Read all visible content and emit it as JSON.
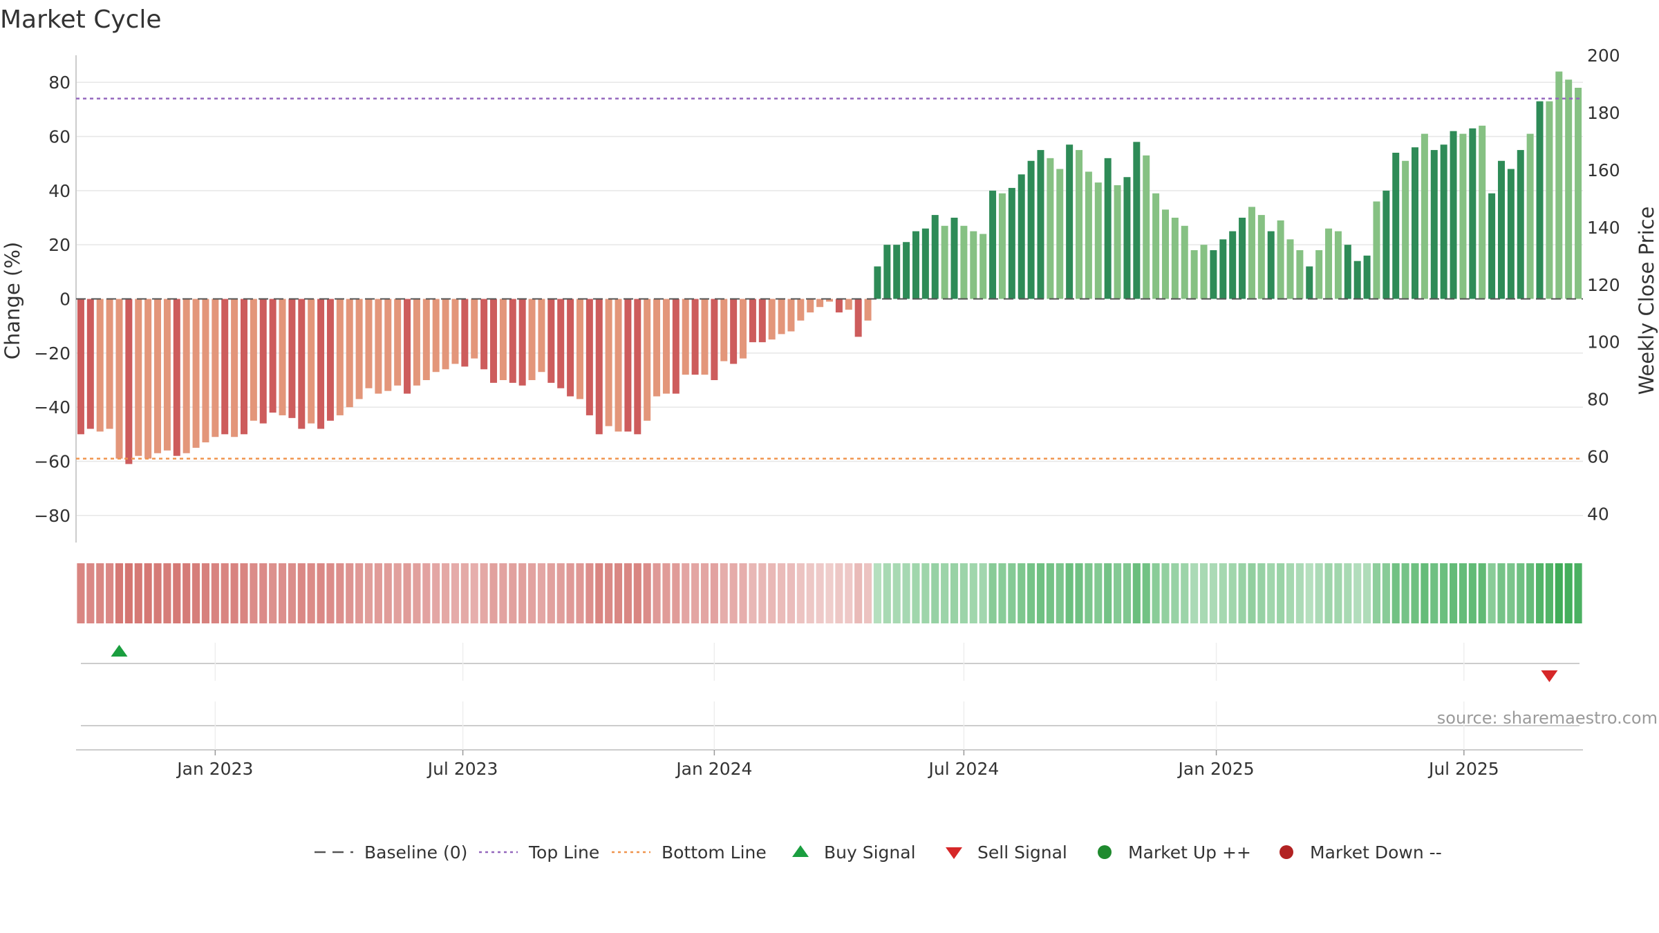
{
  "chart_data": {
    "type": "bar",
    "title": "Market Cycle",
    "ylabel": "Change (%)",
    "y2label": "Weekly Close Price",
    "ylim": [
      -90,
      90
    ],
    "y2lim": [
      30,
      200
    ],
    "yticks": [
      -80,
      -60,
      -40,
      -20,
      0,
      20,
      40,
      60,
      80
    ],
    "yticklabels": [
      "−80",
      "−60",
      "−40",
      "−20",
      "0",
      "20",
      "40",
      "60",
      "80"
    ],
    "y2ticks": [
      40,
      60,
      80,
      100,
      120,
      140,
      160,
      180,
      200
    ],
    "y2ticklabels": [
      "40",
      "60",
      "80",
      "100",
      "120",
      "140",
      "160",
      "180",
      "200"
    ],
    "top_line": 74,
    "bottom_line": -59,
    "baseline": 0,
    "x_start_week_index": 0,
    "xticks": [
      {
        "label": "Jan 2023",
        "week": 14.5
      },
      {
        "label": "Jul 2023",
        "week": 40.3
      },
      {
        "label": "Jan 2024",
        "week": 66.5
      },
      {
        "label": "Jul 2024",
        "week": 92.5
      },
      {
        "label": "Jan 2025",
        "week": 118.8
      },
      {
        "label": "Jul 2025",
        "week": 144.6
      }
    ],
    "values": [
      -50,
      -48,
      -49,
      -48,
      -59,
      -61,
      -58,
      -59,
      -57,
      -56,
      -58,
      -57,
      -55,
      -53,
      -51,
      -50,
      -51,
      -50,
      -45,
      -46,
      -42,
      -43,
      -44,
      -48,
      -46,
      -48,
      -45,
      -43,
      -40,
      -37,
      -33,
      -35,
      -34,
      -32,
      -35,
      -32,
      -30,
      -27,
      -26,
      -24,
      -25,
      -22,
      -26,
      -31,
      -30,
      -31,
      -32,
      -30,
      -27,
      -31,
      -33,
      -36,
      -37,
      -43,
      -50,
      -47,
      -49,
      -49,
      -50,
      -45,
      -36,
      -35,
      -35,
      -28,
      -28,
      -28,
      -30,
      -23,
      -24,
      -22,
      -16,
      -16,
      -15,
      -13,
      -12,
      -8,
      -5,
      -3,
      -1,
      -5,
      -4,
      -14,
      -8,
      12,
      20,
      20,
      21,
      25,
      26,
      31,
      27,
      30,
      27,
      25,
      24,
      40,
      39,
      41,
      46,
      51,
      55,
      52,
      48,
      57,
      55,
      47,
      43,
      52,
      42,
      45,
      58,
      53,
      39,
      33,
      30,
      27,
      18,
      20,
      18,
      22,
      25,
      30,
      34,
      31,
      25,
      29,
      22,
      18,
      12,
      18,
      26,
      25,
      20,
      14,
      16,
      36,
      40,
      54,
      51,
      56,
      61,
      55,
      57,
      62,
      61,
      63,
      64,
      39,
      51,
      48,
      55,
      61,
      73,
      73,
      84,
      81,
      78
    ],
    "price_color_shade": [
      3,
      3,
      2,
      2,
      2,
      3,
      2,
      2,
      2,
      2,
      3,
      2,
      2,
      2,
      2,
      3,
      2,
      3,
      2,
      3,
      3,
      2,
      3,
      3,
      2,
      3,
      3,
      2,
      2,
      2,
      2,
      2,
      2,
      2,
      3,
      2,
      2,
      2,
      2,
      2,
      3,
      2,
      3,
      3,
      2,
      3,
      3,
      2,
      2,
      3,
      3,
      3,
      2,
      3,
      3,
      2,
      2,
      3,
      3,
      2,
      2,
      2,
      3,
      2,
      3,
      2,
      3,
      2,
      3,
      2,
      3,
      3,
      2,
      2,
      2,
      2,
      2,
      2,
      2,
      3,
      2,
      3,
      2,
      3,
      3,
      3,
      3,
      3,
      3,
      3,
      2,
      3,
      2,
      2,
      2,
      3,
      2,
      3,
      3,
      3,
      3,
      2,
      2,
      3,
      2,
      2,
      2,
      3,
      2,
      3,
      3,
      2,
      2,
      2,
      2,
      2,
      2,
      2,
      3,
      3,
      3,
      3,
      2,
      2,
      3,
      2,
      2,
      2,
      3,
      2,
      2,
      2,
      3,
      3,
      3,
      2,
      3,
      3,
      2,
      3,
      2,
      3,
      3,
      3,
      2,
      3,
      2,
      3,
      3,
      3,
      3,
      2,
      3,
      2,
      2
    ],
    "buy_signals": [
      {
        "week": 4.5,
        "label": "Buy Signal"
      }
    ],
    "sell_signals": [
      {
        "week": 153.5,
        "label": "Sell Signal"
      }
    ],
    "legend": [
      {
        "label": "Baseline (0)",
        "style": "dash",
        "color": "#555555"
      },
      {
        "label": "Top Line",
        "style": "dotted",
        "color": "#9467bd"
      },
      {
        "label": "Bottom Line",
        "style": "dotted",
        "color": "#f0944d"
      },
      {
        "label": "Buy Signal",
        "style": "triangle-up",
        "color": "#1a9e3f"
      },
      {
        "label": "Sell Signal",
        "style": "triangle-down",
        "color": "#d62728"
      },
      {
        "label": "Market Up ++",
        "style": "circle",
        "color": "#1f8a2e"
      },
      {
        "label": "Market Down --",
        "style": "circle",
        "color": "#b22222"
      }
    ],
    "source": "source: sharemaestro.com"
  },
  "colors": {
    "down_dark": "#cd5c5c",
    "down_light": "#e3967a",
    "up_dark": "#2e8b57",
    "up_light": "#86c183",
    "top_line": "#9467bd",
    "bottom_line": "#f0944d",
    "grid": "#e6e6e6",
    "axis": "#cccccc"
  }
}
